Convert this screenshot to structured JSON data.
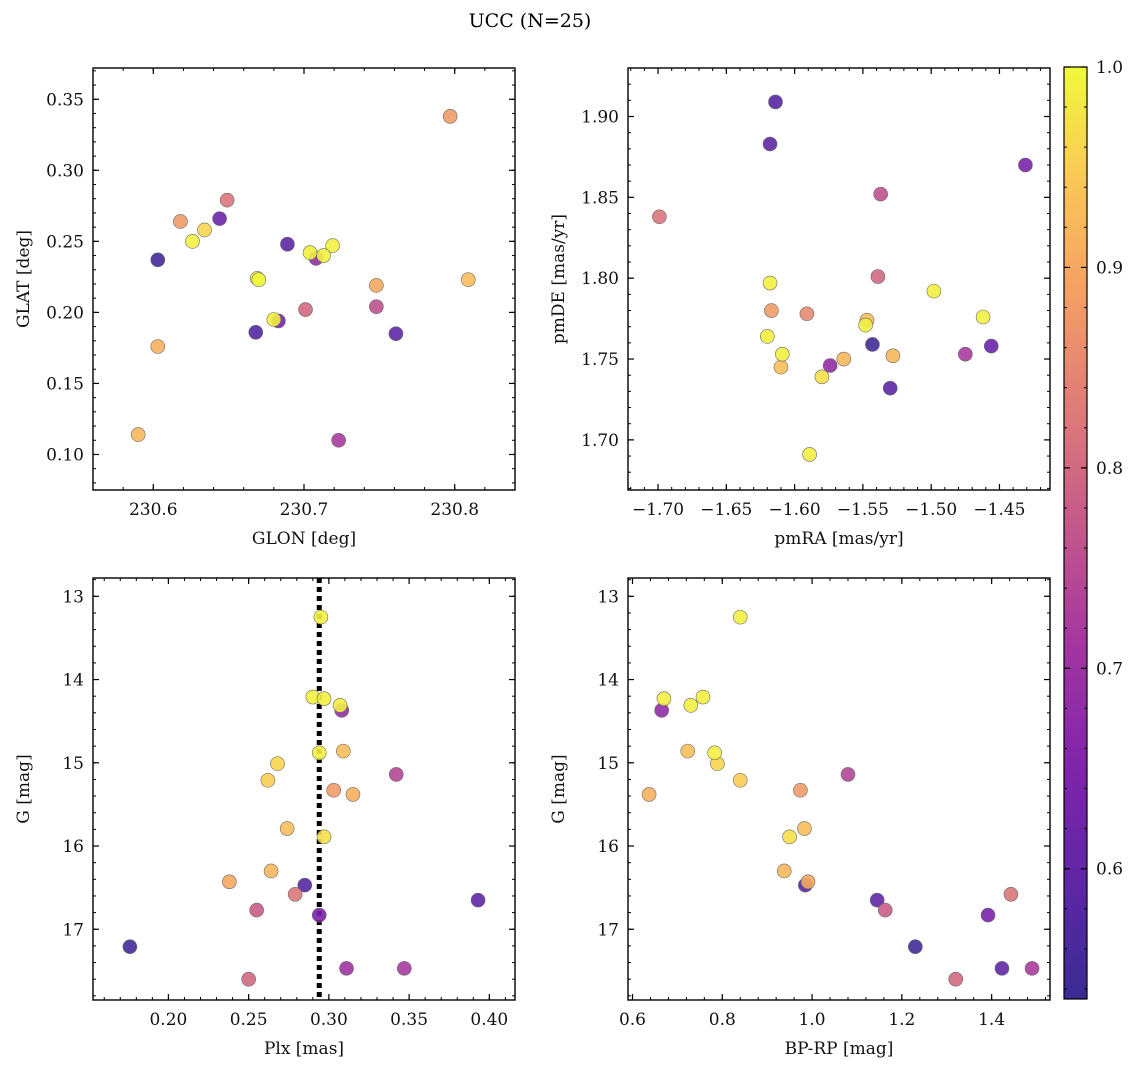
{
  "figure_title": "UCC (N=25)",
  "chart_data": [
    {
      "type": "scatter",
      "xlabel": "GLON [deg]",
      "ylabel": "GLAT [deg]",
      "xlim": [
        230.56,
        230.84
      ],
      "ylim": [
        0.075,
        0.372
      ],
      "xticks": [
        230.6,
        230.7,
        230.8
      ],
      "xticklabels": [
        "230.6",
        "230.7",
        "230.8"
      ],
      "yticks": [
        0.1,
        0.15,
        0.2,
        0.25,
        0.3,
        0.35
      ],
      "yticklabels": [
        "0.10",
        "0.15",
        "0.20",
        "0.25",
        "0.30",
        "0.35"
      ],
      "points": [
        {
          "x": 230.797,
          "y": 0.338,
          "c": 0.88
        },
        {
          "x": 230.649,
          "y": 0.279,
          "c": 0.82
        },
        {
          "x": 230.618,
          "y": 0.264,
          "c": 0.88
        },
        {
          "x": 230.644,
          "y": 0.266,
          "c": 0.62
        },
        {
          "x": 230.634,
          "y": 0.258,
          "c": 0.96
        },
        {
          "x": 230.626,
          "y": 0.25,
          "c": 0.99
        },
        {
          "x": 230.603,
          "y": 0.237,
          "c": 0.55
        },
        {
          "x": 230.689,
          "y": 0.248,
          "c": 0.59
        },
        {
          "x": 230.719,
          "y": 0.247,
          "c": 0.99
        },
        {
          "x": 230.704,
          "y": 0.242,
          "c": 0.99
        },
        {
          "x": 230.713,
          "y": 0.24,
          "c": 0.99
        },
        {
          "x": 230.708,
          "y": 0.238,
          "c": 0.68
        },
        {
          "x": 230.669,
          "y": 0.224,
          "c": 0.99
        },
        {
          "x": 230.67,
          "y": 0.223,
          "c": 1.0
        },
        {
          "x": 230.809,
          "y": 0.223,
          "c": 0.93
        },
        {
          "x": 230.748,
          "y": 0.219,
          "c": 0.9
        },
        {
          "x": 230.748,
          "y": 0.204,
          "c": 0.76
        },
        {
          "x": 230.701,
          "y": 0.202,
          "c": 0.8
        },
        {
          "x": 230.68,
          "y": 0.195,
          "c": 0.99
        },
        {
          "x": 230.683,
          "y": 0.194,
          "c": 0.64
        },
        {
          "x": 230.668,
          "y": 0.186,
          "c": 0.58
        },
        {
          "x": 230.761,
          "y": 0.185,
          "c": 0.6
        },
        {
          "x": 230.603,
          "y": 0.176,
          "c": 0.91
        },
        {
          "x": 230.59,
          "y": 0.114,
          "c": 0.92
        },
        {
          "x": 230.723,
          "y": 0.11,
          "c": 0.72
        }
      ]
    },
    {
      "type": "scatter",
      "xlabel": "pmRA [mas/yr]",
      "ylabel": "pmDE [mas/yr]",
      "xlim": [
        -1.722,
        -1.413
      ],
      "ylim": [
        1.669,
        1.93
      ],
      "xticks": [
        -1.7,
        -1.65,
        -1.6,
        -1.55,
        -1.5,
        -1.45
      ],
      "xticklabels": [
        "−1.70",
        "−1.65",
        "−1.60",
        "−1.55",
        "−1.50",
        "−1.45"
      ],
      "yticks": [
        1.7,
        1.75,
        1.8,
        1.85,
        1.9
      ],
      "yticklabels": [
        "1.70",
        "1.75",
        "1.80",
        "1.85",
        "1.90"
      ],
      "points": [
        {
          "x": -1.614,
          "y": 1.909,
          "c": 0.58
        },
        {
          "x": -1.618,
          "y": 1.883,
          "c": 0.6
        },
        {
          "x": -1.431,
          "y": 1.87,
          "c": 0.64
        },
        {
          "x": -1.537,
          "y": 1.852,
          "c": 0.76
        },
        {
          "x": -1.699,
          "y": 1.838,
          "c": 0.82
        },
        {
          "x": -1.539,
          "y": 1.801,
          "c": 0.8
        },
        {
          "x": -1.618,
          "y": 1.797,
          "c": 0.99
        },
        {
          "x": -1.498,
          "y": 1.792,
          "c": 0.99
        },
        {
          "x": -1.617,
          "y": 1.78,
          "c": 0.88
        },
        {
          "x": -1.591,
          "y": 1.778,
          "c": 0.85
        },
        {
          "x": -1.462,
          "y": 1.776,
          "c": 0.99
        },
        {
          "x": -1.547,
          "y": 1.774,
          "c": 0.93
        },
        {
          "x": -1.548,
          "y": 1.771,
          "c": 0.99
        },
        {
          "x": -1.62,
          "y": 1.764,
          "c": 0.99
        },
        {
          "x": -1.543,
          "y": 1.759,
          "c": 0.55
        },
        {
          "x": -1.456,
          "y": 1.758,
          "c": 0.62
        },
        {
          "x": -1.475,
          "y": 1.753,
          "c": 0.72
        },
        {
          "x": -1.609,
          "y": 1.753,
          "c": 0.99
        },
        {
          "x": -1.528,
          "y": 1.752,
          "c": 0.92
        },
        {
          "x": -1.564,
          "y": 1.75,
          "c": 0.92
        },
        {
          "x": -1.574,
          "y": 1.746,
          "c": 0.68
        },
        {
          "x": -1.61,
          "y": 1.745,
          "c": 0.93
        },
        {
          "x": -1.58,
          "y": 1.739,
          "c": 0.97
        },
        {
          "x": -1.53,
          "y": 1.732,
          "c": 0.59
        },
        {
          "x": -1.589,
          "y": 1.691,
          "c": 0.99
        }
      ]
    },
    {
      "type": "scatter",
      "xlabel": "Plx [mas]",
      "ylabel": "G [mag]",
      "xlim": [
        0.153,
        0.416
      ],
      "ylim": [
        17.85,
        12.78
      ],
      "y_inverted": true,
      "vline": 0.294,
      "xticks": [
        0.2,
        0.25,
        0.3,
        0.35,
        0.4
      ],
      "xticklabels": [
        "0.20",
        "0.25",
        "0.30",
        "0.35",
        "0.40"
      ],
      "yticks": [
        13,
        14,
        15,
        16,
        17
      ],
      "yticklabels": [
        "13",
        "14",
        "15",
        "16",
        "17"
      ],
      "points": [
        {
          "x": 0.295,
          "y": 13.25,
          "c": 0.99
        },
        {
          "x": 0.29,
          "y": 14.21,
          "c": 0.99
        },
        {
          "x": 0.297,
          "y": 14.23,
          "c": 0.99
        },
        {
          "x": 0.307,
          "y": 14.31,
          "c": 0.99
        },
        {
          "x": 0.308,
          "y": 14.37,
          "c": 0.68
        },
        {
          "x": 0.294,
          "y": 14.88,
          "c": 0.99
        },
        {
          "x": 0.309,
          "y": 14.86,
          "c": 0.93
        },
        {
          "x": 0.268,
          "y": 15.01,
          "c": 0.96
        },
        {
          "x": 0.342,
          "y": 15.14,
          "c": 0.74
        },
        {
          "x": 0.262,
          "y": 15.21,
          "c": 0.95
        },
        {
          "x": 0.303,
          "y": 15.33,
          "c": 0.88
        },
        {
          "x": 0.315,
          "y": 15.38,
          "c": 0.91
        },
        {
          "x": 0.274,
          "y": 15.79,
          "c": 0.93
        },
        {
          "x": 0.297,
          "y": 15.89,
          "c": 0.97
        },
        {
          "x": 0.264,
          "y": 16.3,
          "c": 0.92
        },
        {
          "x": 0.238,
          "y": 16.43,
          "c": 0.9
        },
        {
          "x": 0.285,
          "y": 16.47,
          "c": 0.58
        },
        {
          "x": 0.279,
          "y": 16.58,
          "c": 0.82
        },
        {
          "x": 0.393,
          "y": 16.65,
          "c": 0.6
        },
        {
          "x": 0.255,
          "y": 16.77,
          "c": 0.78
        },
        {
          "x": 0.294,
          "y": 16.83,
          "c": 0.64
        },
        {
          "x": 0.176,
          "y": 17.21,
          "c": 0.55
        },
        {
          "x": 0.311,
          "y": 17.47,
          "c": 0.7
        },
        {
          "x": 0.347,
          "y": 17.47,
          "c": 0.72
        },
        {
          "x": 0.25,
          "y": 17.6,
          "c": 0.8
        }
      ]
    },
    {
      "type": "scatter",
      "xlabel": "BP-RP [mag]",
      "ylabel": "G [mag]",
      "xlim": [
        0.59,
        1.53
      ],
      "ylim": [
        17.85,
        12.78
      ],
      "y_inverted": true,
      "xticks": [
        0.6,
        0.8,
        1.0,
        1.2,
        1.4
      ],
      "xticklabels": [
        "0.6",
        "0.8",
        "1.0",
        "1.2",
        "1.4"
      ],
      "yticks": [
        13,
        14,
        15,
        16,
        17
      ],
      "yticklabels": [
        "13",
        "14",
        "15",
        "16",
        "17"
      ],
      "points": [
        {
          "x": 0.84,
          "y": 13.25,
          "c": 0.99
        },
        {
          "x": 0.757,
          "y": 14.21,
          "c": 0.99
        },
        {
          "x": 0.67,
          "y": 14.23,
          "c": 0.99
        },
        {
          "x": 0.73,
          "y": 14.31,
          "c": 0.99
        },
        {
          "x": 0.665,
          "y": 14.37,
          "c": 0.68
        },
        {
          "x": 0.723,
          "y": 14.86,
          "c": 0.93
        },
        {
          "x": 0.783,
          "y": 14.88,
          "c": 0.99
        },
        {
          "x": 0.789,
          "y": 15.01,
          "c": 0.96
        },
        {
          "x": 1.08,
          "y": 15.14,
          "c": 0.74
        },
        {
          "x": 0.84,
          "y": 15.21,
          "c": 0.95
        },
        {
          "x": 0.974,
          "y": 15.33,
          "c": 0.88
        },
        {
          "x": 0.637,
          "y": 15.38,
          "c": 0.91
        },
        {
          "x": 0.983,
          "y": 15.79,
          "c": 0.93
        },
        {
          "x": 0.95,
          "y": 15.89,
          "c": 0.97
        },
        {
          "x": 0.938,
          "y": 16.3,
          "c": 0.92
        },
        {
          "x": 0.991,
          "y": 16.43,
          "c": 0.9
        },
        {
          "x": 0.985,
          "y": 16.47,
          "c": 0.58
        },
        {
          "x": 1.443,
          "y": 16.58,
          "c": 0.82
        },
        {
          "x": 1.145,
          "y": 16.65,
          "c": 0.6
        },
        {
          "x": 1.163,
          "y": 16.77,
          "c": 0.78
        },
        {
          "x": 1.392,
          "y": 16.83,
          "c": 0.64
        },
        {
          "x": 1.23,
          "y": 17.21,
          "c": 0.55
        },
        {
          "x": 1.423,
          "y": 17.47,
          "c": 0.6
        },
        {
          "x": 1.49,
          "y": 17.47,
          "c": 0.72
        },
        {
          "x": 1.32,
          "y": 17.6,
          "c": 0.8
        }
      ]
    }
  ],
  "colorbar": {
    "colormap": "plasma-upper",
    "range": [
      0.535,
      1.0
    ],
    "ticks": [
      0.6,
      0.7,
      0.8,
      0.9,
      1.0
    ],
    "ticklabels": [
      "0.6",
      "0.7",
      "0.8",
      "0.9",
      "1.0"
    ]
  },
  "colors": {
    "vline": "#000000",
    "marker_edge": "#6b6b6b"
  }
}
